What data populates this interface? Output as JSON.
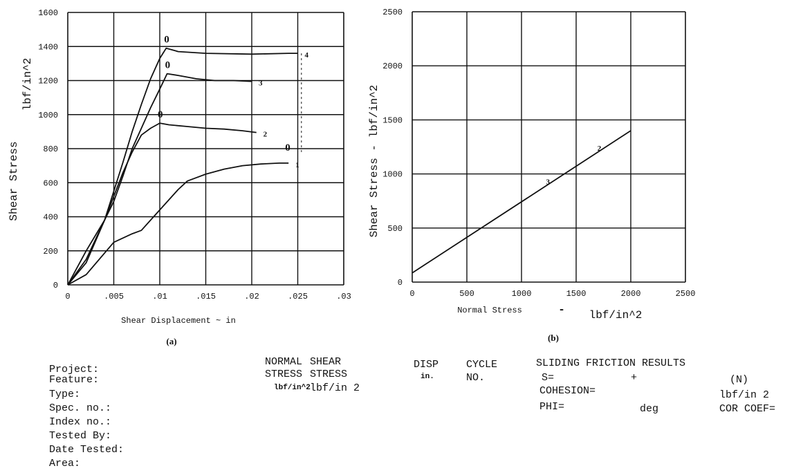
{
  "chart_data": [
    {
      "type": "line",
      "caption": "(a)",
      "xlabel": "Shear Displacement ~ in",
      "ylabel": "Shear Stress",
      "y_unit_label": "lbf/in^2",
      "xlim": [
        0,
        0.03
      ],
      "ylim": [
        0,
        1600
      ],
      "x_ticks": [
        "0",
        ".005",
        ".01",
        ".015",
        ".02",
        ".025",
        ".03"
      ],
      "y_ticks": [
        "0",
        "200",
        "400",
        "600",
        "800",
        "1000",
        "1200",
        "1400",
        "1600"
      ],
      "grid": true,
      "series": [
        {
          "name": "1",
          "points": [
            [
              0,
              0
            ],
            [
              0.002,
              60
            ],
            [
              0.005,
              250
            ],
            [
              0.007,
              300
            ],
            [
              0.008,
              320
            ],
            [
              0.009,
              380
            ],
            [
              0.01,
              440
            ],
            [
              0.011,
              500
            ],
            [
              0.012,
              560
            ],
            [
              0.013,
              610
            ],
            [
              0.015,
              650
            ],
            [
              0.017,
              680
            ],
            [
              0.019,
              700
            ],
            [
              0.021,
              710
            ],
            [
              0.023,
              715
            ],
            [
              0.024,
              715
            ]
          ]
        },
        {
          "name": "2",
          "points": [
            [
              0,
              0
            ],
            [
              0.002,
              130
            ],
            [
              0.004,
              380
            ],
            [
              0.005,
              520
            ],
            [
              0.006,
              660
            ],
            [
              0.007,
              780
            ],
            [
              0.008,
              880
            ],
            [
              0.009,
              920
            ],
            [
              0.01,
              950
            ],
            [
              0.011,
              940
            ],
            [
              0.013,
              930
            ],
            [
              0.015,
              920
            ],
            [
              0.017,
              915
            ],
            [
              0.019,
              905
            ],
            [
              0.0205,
              895
            ]
          ]
        },
        {
          "name": "3",
          "points": [
            [
              0,
              0
            ],
            [
              0.002,
              150
            ],
            [
              0.004,
              380
            ],
            [
              0.005,
              490
            ],
            [
              0.006,
              640
            ],
            [
              0.007,
              800
            ],
            [
              0.008,
              920
            ],
            [
              0.009,
              1040
            ],
            [
              0.01,
              1150
            ],
            [
              0.0108,
              1240
            ],
            [
              0.012,
              1230
            ],
            [
              0.014,
              1210
            ],
            [
              0.016,
              1200
            ],
            [
              0.018,
              1200
            ],
            [
              0.02,
              1195
            ]
          ]
        },
        {
          "name": "4",
          "points": [
            [
              0,
              0
            ],
            [
              0.002,
              200
            ],
            [
              0.004,
              380
            ],
            [
              0.005,
              550
            ],
            [
              0.006,
              720
            ],
            [
              0.007,
              900
            ],
            [
              0.008,
              1060
            ],
            [
              0.009,
              1210
            ],
            [
              0.01,
              1330
            ],
            [
              0.0107,
              1390
            ],
            [
              0.012,
              1370
            ],
            [
              0.015,
              1360
            ],
            [
              0.02,
              1355
            ],
            [
              0.024,
              1360
            ],
            [
              0.025,
              1360
            ]
          ]
        }
      ],
      "series_labels": [
        "1",
        "2",
        "3",
        "4"
      ],
      "peak_markers": [
        "0",
        "0",
        "0",
        "0"
      ]
    },
    {
      "type": "line",
      "caption": "(b)",
      "xlabel": "Normal Stress",
      "x_unit_label": "lbf/in^2",
      "ylabel": "Shear Stress - lbf/in^2",
      "xlim": [
        0,
        2500
      ],
      "ylim": [
        0,
        2500
      ],
      "x_ticks": [
        "0",
        "500",
        "1000",
        "1500",
        "2000",
        "2500"
      ],
      "y_ticks": [
        "0",
        "500",
        "1000",
        "1500",
        "2000",
        "2500"
      ],
      "grid": true,
      "series": [
        {
          "name": "fit",
          "points": [
            [
              0,
              85
            ],
            [
              2000,
              1400
            ]
          ]
        }
      ],
      "point_labels": [
        {
          "text": "3",
          "x": 1250,
          "y": 930
        },
        {
          "text": "2",
          "x": 1720,
          "y": 1240
        }
      ]
    }
  ],
  "form": {
    "left_labels": [
      "Project:",
      "Feature:",
      "Type:",
      "Spec. no.:",
      "Index no.:",
      "Tested By:",
      "Date Tested:",
      "Area:"
    ],
    "columns": {
      "normal": {
        "line1": "NORMAL",
        "line2": "STRESS",
        "unit": "lbf/in^2"
      },
      "shear": {
        "line1": "SHEAR",
        "line2": "STRESS",
        "unit": "lbf/in 2"
      },
      "disp": {
        "line1": "DISP",
        "unit": "in."
      },
      "cycle": {
        "line1": "CYCLE",
        "line2": "NO."
      }
    },
    "results": {
      "title": "SLIDING FRICTION RESULTS",
      "s_label": "S=",
      "plus": "+",
      "n_label": "(N)",
      "cohesion_label": "COHESION=",
      "cohesion_unit": "lbf/in 2",
      "phi_label": "PHI=",
      "phi_unit": "deg",
      "cor_label": "COR COEF="
    }
  }
}
